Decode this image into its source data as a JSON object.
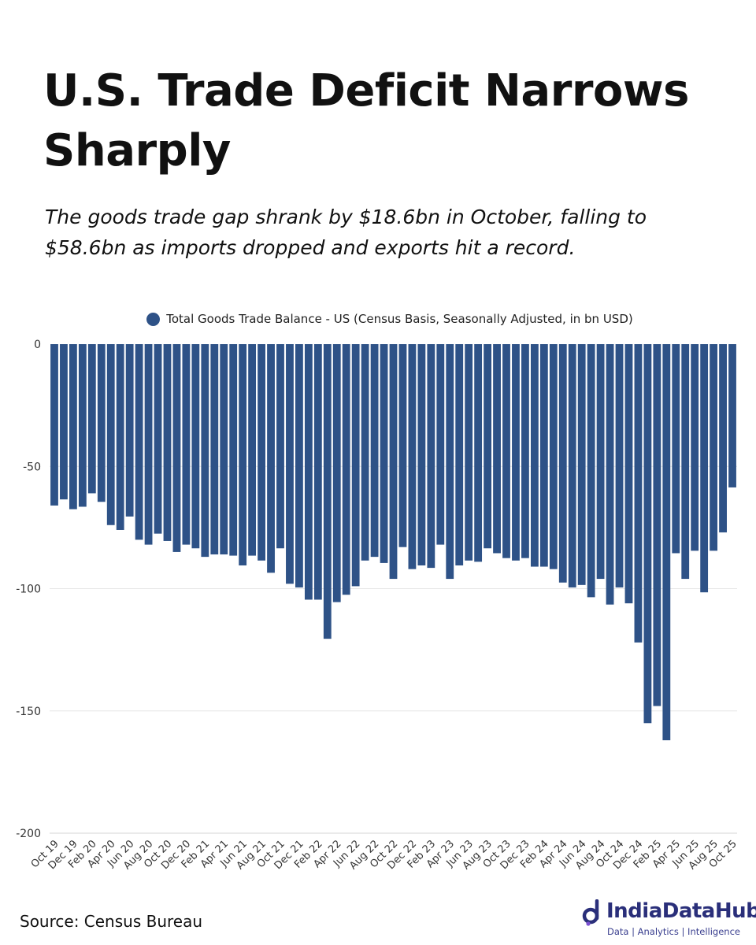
{
  "title": "U.S. Trade Deficit Narrows Sharply",
  "subtitle": "The goods trade gap shrank by $18.6bn in October, falling to $58.6bn as imports dropped and exports hit a record.",
  "source": "Source: Census Bureau",
  "logo": {
    "brand": "IndiaDataHub",
    "tagline": "Data | Analytics | Intelligence"
  },
  "colors": {
    "bar": "#2e5287",
    "logo_main": "#2a2f7a",
    "logo_accent": "#7a4fd1"
  },
  "chart_data": {
    "type": "bar",
    "legend": "Total Goods Trade Balance - US (Census Basis, Seasonally Adjusted, in bn USD)",
    "legend_position": "top",
    "ylim": [
      -200,
      0
    ],
    "yticks": [
      0,
      -50,
      -100,
      -150,
      -200
    ],
    "grid": true,
    "tick_labels": [
      "Oct 19",
      "Dec 19",
      "Feb 20",
      "Apr 20",
      "Jun 20",
      "Aug 20",
      "Oct 20",
      "Dec 20",
      "Feb 21",
      "Apr 21",
      "Jun 21",
      "Aug 21",
      "Oct 21",
      "Dec 21",
      "Feb 22",
      "Apr 22",
      "Jun 22",
      "Aug 22",
      "Oct 22",
      "Dec 22",
      "Feb 23",
      "Apr 23",
      "Jun 23",
      "Aug 23",
      "Oct 23",
      "Dec 23",
      "Feb 24",
      "Apr 24",
      "Jun 24",
      "Aug 24",
      "Oct 24",
      "Dec 24",
      "Feb 25",
      "Apr 25",
      "Jun 25",
      "Aug 25",
      "Oct 25"
    ],
    "categories": [
      "Oct 19",
      "Nov 19",
      "Dec 19",
      "Jan 20",
      "Feb 20",
      "Mar 20",
      "Apr 20",
      "May 20",
      "Jun 20",
      "Jul 20",
      "Aug 20",
      "Sep 20",
      "Oct 20",
      "Nov 20",
      "Dec 20",
      "Jan 21",
      "Feb 21",
      "Mar 21",
      "Apr 21",
      "May 21",
      "Jun 21",
      "Jul 21",
      "Aug 21",
      "Sep 21",
      "Oct 21",
      "Nov 21",
      "Dec 21",
      "Jan 22",
      "Feb 22",
      "Mar 22",
      "Apr 22",
      "May 22",
      "Jun 22",
      "Jul 22",
      "Aug 22",
      "Sep 22",
      "Oct 22",
      "Nov 22",
      "Dec 22",
      "Jan 23",
      "Feb 23",
      "Mar 23",
      "Apr 23",
      "May 23",
      "Jun 23",
      "Jul 23",
      "Aug 23",
      "Sep 23",
      "Oct 23",
      "Nov 23",
      "Dec 23",
      "Jan 24",
      "Feb 24",
      "Mar 24",
      "Apr 24",
      "May 24",
      "Jun 24",
      "Jul 24",
      "Aug 24",
      "Sep 24",
      "Oct 24",
      "Nov 24",
      "Dec 24",
      "Jan 25",
      "Feb 25",
      "Mar 25",
      "Apr 25",
      "May 25",
      "Jun 25",
      "Jul 25",
      "Aug 25",
      "Sep 25",
      "Oct 25"
    ],
    "values": [
      -66,
      -63.5,
      -67.5,
      -66.5,
      -61,
      -64.5,
      -74,
      -76,
      -70.5,
      -80,
      -82,
      -77.5,
      -80.5,
      -85,
      -82,
      -83.5,
      -87,
      -86,
      -86,
      -86.5,
      -90.5,
      -86.5,
      -88.5,
      -93.5,
      -83.5,
      -98,
      -99.5,
      -104.5,
      -104.5,
      -120.5,
      -105.5,
      -102.5,
      -99,
      -88.5,
      -87,
      -89.5,
      -96,
      -83,
      -92,
      -90.5,
      -91.5,
      -82,
      -96,
      -90.5,
      -88.5,
      -89,
      -83.5,
      -85.5,
      -87.5,
      -88.5,
      -87.5,
      -91,
      -91,
      -92,
      -97.5,
      -99.5,
      -98.5,
      -103.5,
      -96,
      -106.5,
      -99.5,
      -106,
      -122,
      -155,
      -148,
      -162,
      -85.5,
      -96,
      -84.5,
      -101.5,
      -84.5,
      -77,
      -58.6
    ]
  }
}
